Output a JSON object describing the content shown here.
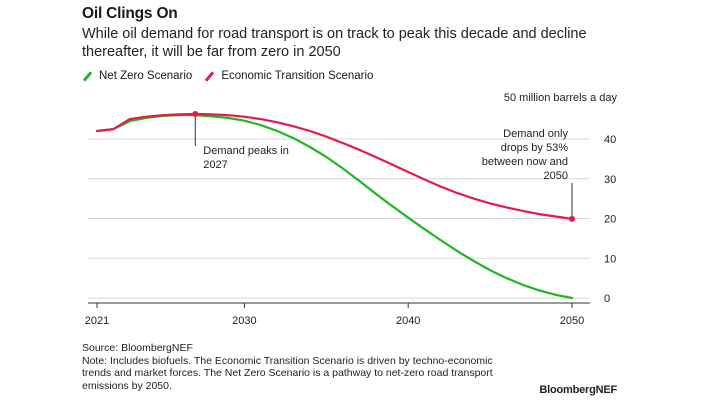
{
  "title": "Oil Clings On",
  "subtitle": "While oil demand for road transport is on track to peak this decade and decline thereafter, it will be far from zero in 2050",
  "unit_label": "50 million barrels a day",
  "source": "Source: BloombergNEF",
  "note": "Note: Includes biofuels. The Economic Transition Scenario is driven by techno-economic trends and market forces. The Net Zero Scenario is a pathway to net-zero road transport emissions by 2050.",
  "brand": "BloombergNEF",
  "colors": {
    "net_zero": "#22b522",
    "economic_transition": "#e31b4c",
    "grid": "#d9d9d9",
    "axis": "#333333"
  },
  "chart_data": {
    "type": "line",
    "xlim": [
      2021,
      2051
    ],
    "ylim": [
      0,
      50
    ],
    "xticks": [
      2021,
      2030,
      2040,
      2050
    ],
    "yticks": [
      0,
      10,
      20,
      30,
      40
    ],
    "grid": true,
    "legend_position": "top-left",
    "series": [
      {
        "name": "Net Zero Scenario",
        "color": "#22b522",
        "x": [
          2021,
          2022,
          2023,
          2024,
          2025,
          2026,
          2027,
          2028,
          2029,
          2030,
          2031,
          2032,
          2033,
          2034,
          2035,
          2036,
          2037,
          2038,
          2039,
          2040,
          2041,
          2042,
          2043,
          2044,
          2045,
          2046,
          2047,
          2048,
          2049,
          2050
        ],
        "values": [
          42,
          42.5,
          44.5,
          45.3,
          45.8,
          46,
          46,
          45.7,
          45.3,
          44.6,
          43.5,
          42,
          40.2,
          38,
          35.5,
          32.6,
          29.5,
          26.3,
          23.2,
          20.2,
          17.3,
          14.5,
          11.8,
          9.3,
          7,
          5,
          3.3,
          1.9,
          0.8,
          0
        ]
      },
      {
        "name": "Economic Transition Scenario",
        "color": "#e31b4c",
        "x": [
          2021,
          2022,
          2023,
          2024,
          2025,
          2026,
          2027,
          2028,
          2029,
          2030,
          2031,
          2032,
          2033,
          2034,
          2035,
          2036,
          2037,
          2038,
          2039,
          2040,
          2041,
          2042,
          2043,
          2044,
          2045,
          2046,
          2047,
          2048,
          2049,
          2050
        ],
        "values": [
          42,
          42.5,
          45,
          45.6,
          46,
          46.2,
          46.3,
          46.2,
          46,
          45.6,
          45,
          44.2,
          43.2,
          42,
          40.6,
          39,
          37.3,
          35.5,
          33.6,
          31.7,
          29.8,
          28,
          26.4,
          25,
          23.8,
          22.8,
          21.9,
          21.1,
          20.5,
          19.9
        ]
      }
    ],
    "annotations": [
      {
        "x": 2027,
        "y": 46.3,
        "text": [
          "Demand peaks in",
          "2027"
        ]
      },
      {
        "x": 2050,
        "y": 19.9,
        "text": [
          "Demand only",
          "drops by 53%",
          "between now and",
          "2050"
        ]
      }
    ]
  }
}
